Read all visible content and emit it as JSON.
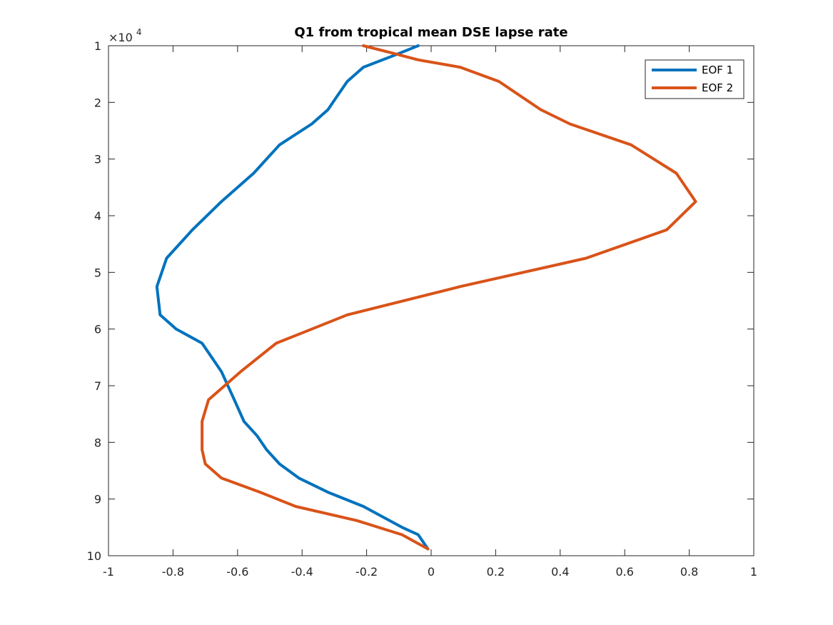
{
  "chart_data": {
    "type": "line",
    "title": "Q1 from tropical mean DSE lapse rate",
    "xlabel": "",
    "ylabel": "",
    "xlim": [
      -1,
      1
    ],
    "ylim": [
      10000,
      100000
    ],
    "y_direction": "reverse",
    "y_exponent_label": "×10",
    "y_exponent_power": "4",
    "x_ticks": [
      "-1",
      "-0.8",
      "-0.6",
      "-0.4",
      "-0.2",
      "0",
      "0.2",
      "0.4",
      "0.6",
      "0.8",
      "1"
    ],
    "x_tick_values": [
      -1,
      -0.8,
      -0.6,
      -0.4,
      -0.2,
      0,
      0.2,
      0.4,
      0.6,
      0.8,
      1
    ],
    "y_ticks": [
      "1",
      "2",
      "3",
      "4",
      "5",
      "6",
      "7",
      "8",
      "9",
      "10"
    ],
    "y_tick_values": [
      10000,
      20000,
      30000,
      40000,
      50000,
      60000,
      70000,
      80000,
      90000,
      100000
    ],
    "grid": false,
    "legend_position": "top-right",
    "series": [
      {
        "name": "EOF 1",
        "color": "#0072BD",
        "x": [
          -0.04,
          -0.11,
          -0.21,
          -0.26,
          -0.29,
          -0.32,
          -0.37,
          -0.47,
          -0.55,
          -0.65,
          -0.74,
          -0.82,
          -0.85,
          -0.84,
          -0.79,
          -0.71,
          -0.65,
          -0.61,
          -0.58,
          -0.54,
          -0.51,
          -0.47,
          -0.41,
          -0.32,
          -0.21,
          -0.09,
          -0.04,
          -0.01
        ],
        "y": [
          10000,
          11600,
          13800,
          16300,
          18800,
          21300,
          23800,
          27500,
          32500,
          37500,
          42500,
          47500,
          52500,
          57500,
          60000,
          62500,
          67500,
          72500,
          76300,
          78800,
          81300,
          83800,
          86300,
          88800,
          91300,
          95000,
          96300,
          98800
        ]
      },
      {
        "name": "EOF 2",
        "color": "#D95319",
        "x": [
          -0.21,
          -0.12,
          -0.04,
          0.09,
          0.21,
          0.34,
          0.43,
          0.62,
          0.76,
          0.82,
          0.73,
          0.48,
          0.09,
          -0.26,
          -0.37,
          -0.48,
          -0.59,
          -0.69,
          -0.71,
          -0.71,
          -0.71,
          -0.7,
          -0.65,
          -0.53,
          -0.42,
          -0.23,
          -0.09,
          -0.01
        ],
        "y": [
          10000,
          11300,
          12500,
          13800,
          16300,
          21300,
          23800,
          27500,
          32500,
          37500,
          42500,
          47500,
          52500,
          57500,
          60000,
          62500,
          67500,
          72500,
          76300,
          78800,
          81300,
          83800,
          86300,
          88800,
          91300,
          93800,
          96300,
          98800
        ]
      }
    ]
  }
}
